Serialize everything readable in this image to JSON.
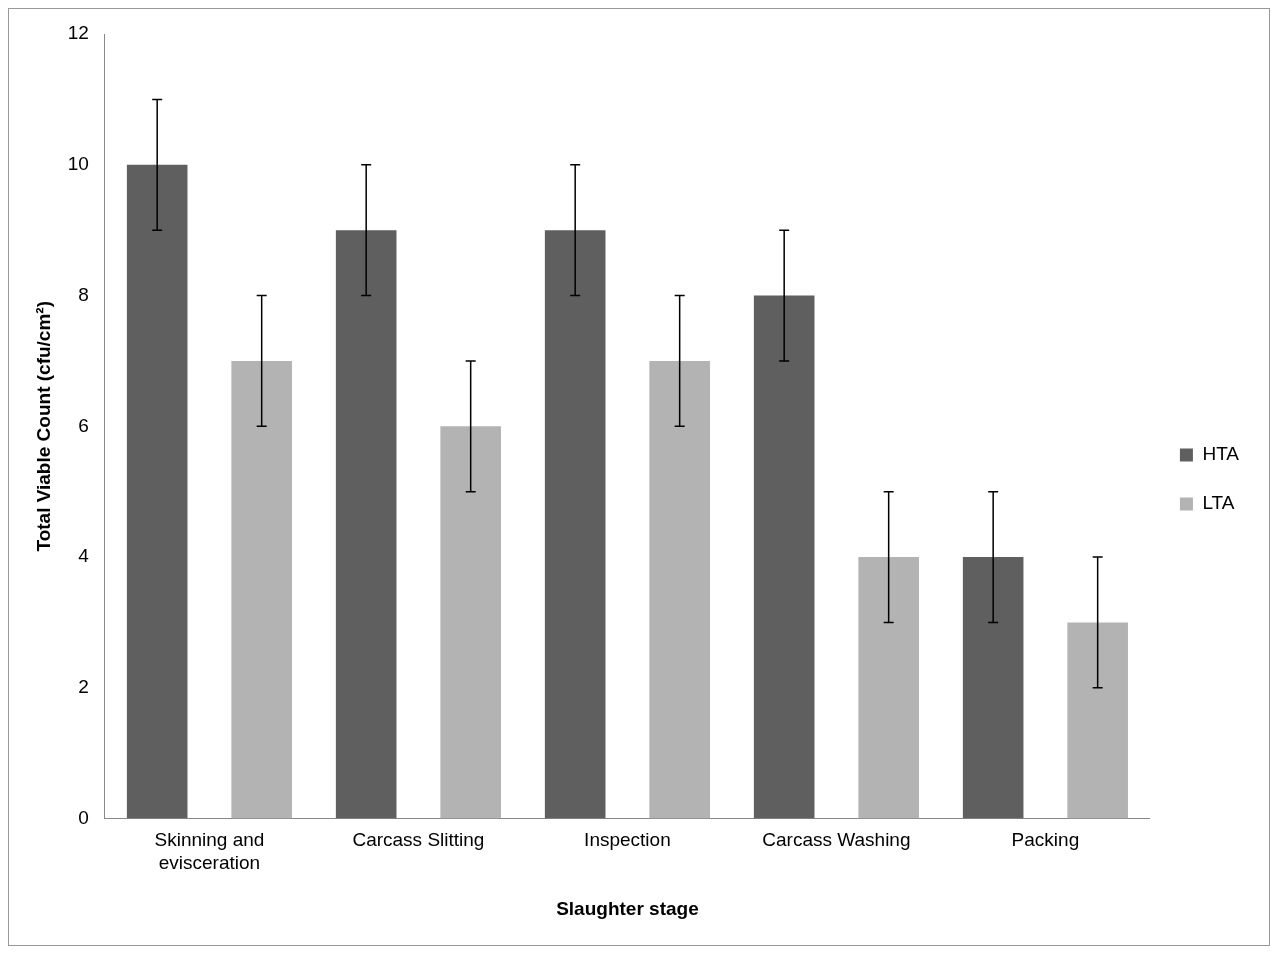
{
  "chart_data": {
    "type": "bar",
    "xlabel": "Slaughter stage",
    "ylabel": "Total Viable Count (cfu/cm²)",
    "categories": [
      "Skinning and evisceration",
      "Carcass Slitting",
      "Inspection",
      "Carcass Washing",
      "Packing"
    ],
    "series": [
      {
        "name": "HTA",
        "color": "#5f5f5f",
        "values": [
          10,
          9,
          9,
          8,
          4
        ],
        "errors": [
          1,
          1,
          1,
          1,
          1
        ]
      },
      {
        "name": "LTA",
        "color": "#b3b3b3",
        "values": [
          7,
          6,
          7,
          4,
          3
        ],
        "errors": [
          1,
          1,
          1,
          1,
          1
        ]
      }
    ],
    "ylim": [
      0,
      12
    ],
    "yticks": [
      0,
      2,
      4,
      6,
      8,
      10,
      12
    ],
    "grid": false,
    "legend": "right"
  }
}
